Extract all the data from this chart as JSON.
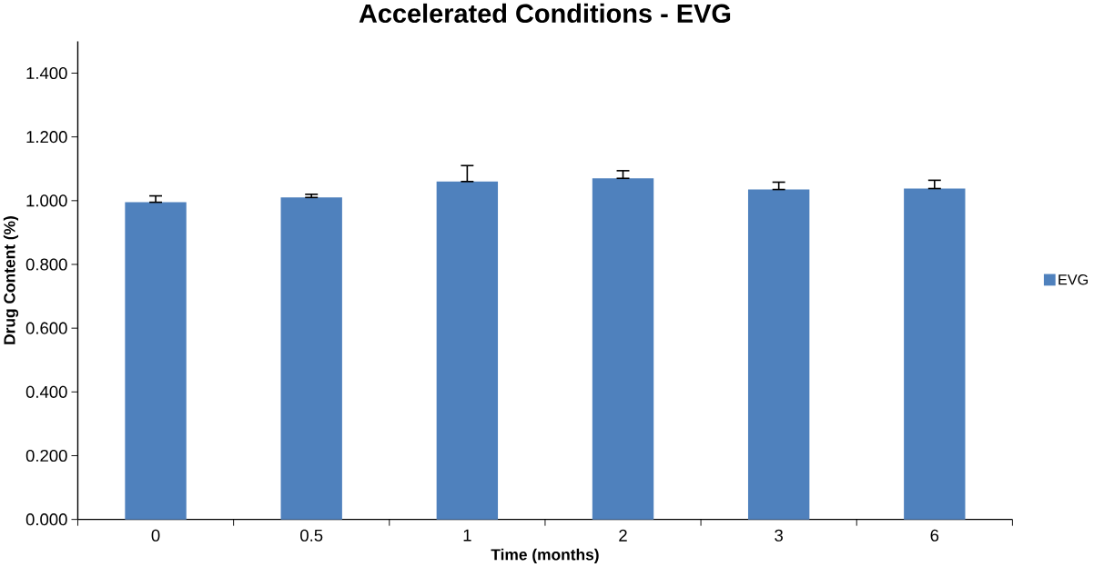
{
  "chart_data": {
    "type": "bar",
    "title": "Accelerated Conditions - EVG",
    "xlabel": "Time (months)",
    "ylabel": "Drug Content (%)",
    "categories": [
      "0",
      "0.5",
      "1",
      "2",
      "3",
      "6"
    ],
    "series": [
      {
        "name": "EVG",
        "color": "#4f81bd",
        "values": [
          0.995,
          1.01,
          1.06,
          1.07,
          1.035,
          1.038
        ],
        "errors": [
          [
            0.995,
            1.015
          ],
          [
            1.01,
            1.02
          ],
          [
            1.06,
            1.11
          ],
          [
            1.07,
            1.094
          ],
          [
            1.035,
            1.058
          ],
          [
            1.038,
            1.064
          ]
        ]
      }
    ],
    "ylim": [
      0,
      1.5
    ],
    "yticks": [
      {
        "value": 0,
        "label": "0.000"
      },
      {
        "value": 0.2,
        "label": "0.200"
      },
      {
        "value": 0.4,
        "label": "0.400"
      },
      {
        "value": 0.6,
        "label": "0.600"
      },
      {
        "value": 0.8,
        "label": "0.800"
      },
      {
        "value": 1.0,
        "label": "1.000"
      },
      {
        "value": 1.2,
        "label": "1.200"
      },
      {
        "value": 1.4,
        "label": "1.400"
      }
    ],
    "grid": false,
    "legend": "right"
  }
}
